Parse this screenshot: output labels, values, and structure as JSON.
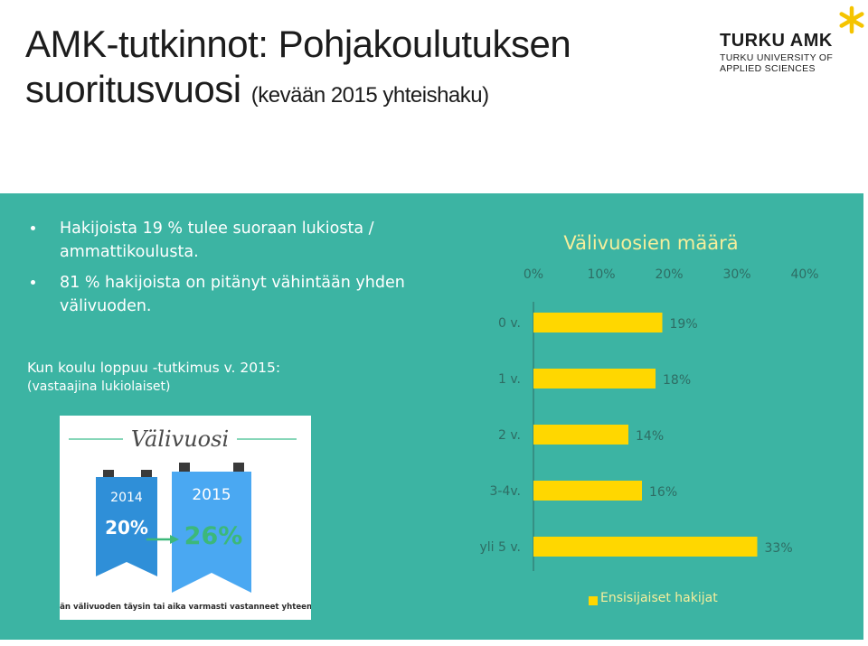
{
  "header": {
    "title": "AMK-tutkinnot: Pohjakoulutuksen",
    "title_line2": "suoritusvuosi",
    "subtitle": "(kevään 2015 yhteishaku)"
  },
  "logo": {
    "wordmark": "TURKU AMK",
    "tagline_1": "TURKU UNIVERSITY OF",
    "tagline_2": "APPLIED SCIENCES",
    "icon": "asterisk-star-icon"
  },
  "bullets": [
    "Hakijoista 19 % tulee suoraan lukiosta / ammattikoulusta.",
    "81 % hakijoista on pitänyt vähintään yhden välivuoden."
  ],
  "survey": {
    "title": "Kun koulu loppuu -tutkimus v. 2015:",
    "note": "(vastaajina lukiolaiset)"
  },
  "infographic": {
    "heading": "Välivuosi",
    "year_left": "2014",
    "value_left": "20%",
    "year_right": "2015",
    "value_right": "26%",
    "caption": "Pidän välivuoden täysin tai aika varmasti vastanneet yhteensä.",
    "arrow_icon": "arrow-right-icon"
  },
  "colors": {
    "panel": "#3cb4a3",
    "bar": "#ffd700",
    "chart_text": "#f5ee9c",
    "axis_text": "#2e6d64",
    "ribbon_left": "#2f8fd8",
    "ribbon_right": "#4aa8f2",
    "infographic_value": "#3cb87a"
  },
  "chart_data": {
    "type": "bar",
    "orientation": "horizontal",
    "title": "Välivuosien määrä",
    "categories": [
      "0 v.",
      "1 v.",
      "2 v.",
      "3-4v.",
      "yli 5 v."
    ],
    "values": [
      19,
      18,
      14,
      16,
      33
    ],
    "value_labels": [
      "19%",
      "18%",
      "14%",
      "16%",
      "33%"
    ],
    "series": [
      {
        "name": "Ensisijaiset hakijat",
        "values": [
          19,
          18,
          14,
          16,
          33
        ]
      }
    ],
    "xlim": [
      0,
      40
    ],
    "xticks": [
      "0%",
      "10%",
      "20%",
      "30%",
      "40%"
    ],
    "tick_values": [
      0,
      10,
      20,
      30,
      40
    ],
    "xlabel": "",
    "ylabel": "",
    "grid": false,
    "legend": "bottom"
  }
}
